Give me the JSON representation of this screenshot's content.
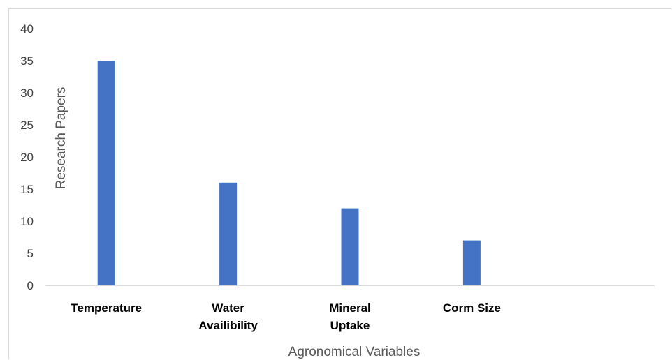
{
  "chart_data": {
    "type": "bar",
    "categories": [
      [
        "Temperature"
      ],
      [
        "Water",
        "Availibility"
      ],
      [
        "Mineral",
        "Uptake"
      ],
      [
        "Corm Size"
      ],
      [
        ""
      ]
    ],
    "series": [
      {
        "values": [
          35,
          16,
          12,
          7,
          null
        ]
      }
    ],
    "xlabel": "Agronomical Variables",
    "ylabel": "Research  Papers",
    "ylim": [
      0,
      40
    ],
    "yticks": [
      0,
      5,
      10,
      15,
      20,
      25,
      30,
      35,
      40
    ],
    "grid": false,
    "legend": "none",
    "colors": {
      "bar": "#4472C4",
      "axis": "#d9d9d9"
    }
  }
}
